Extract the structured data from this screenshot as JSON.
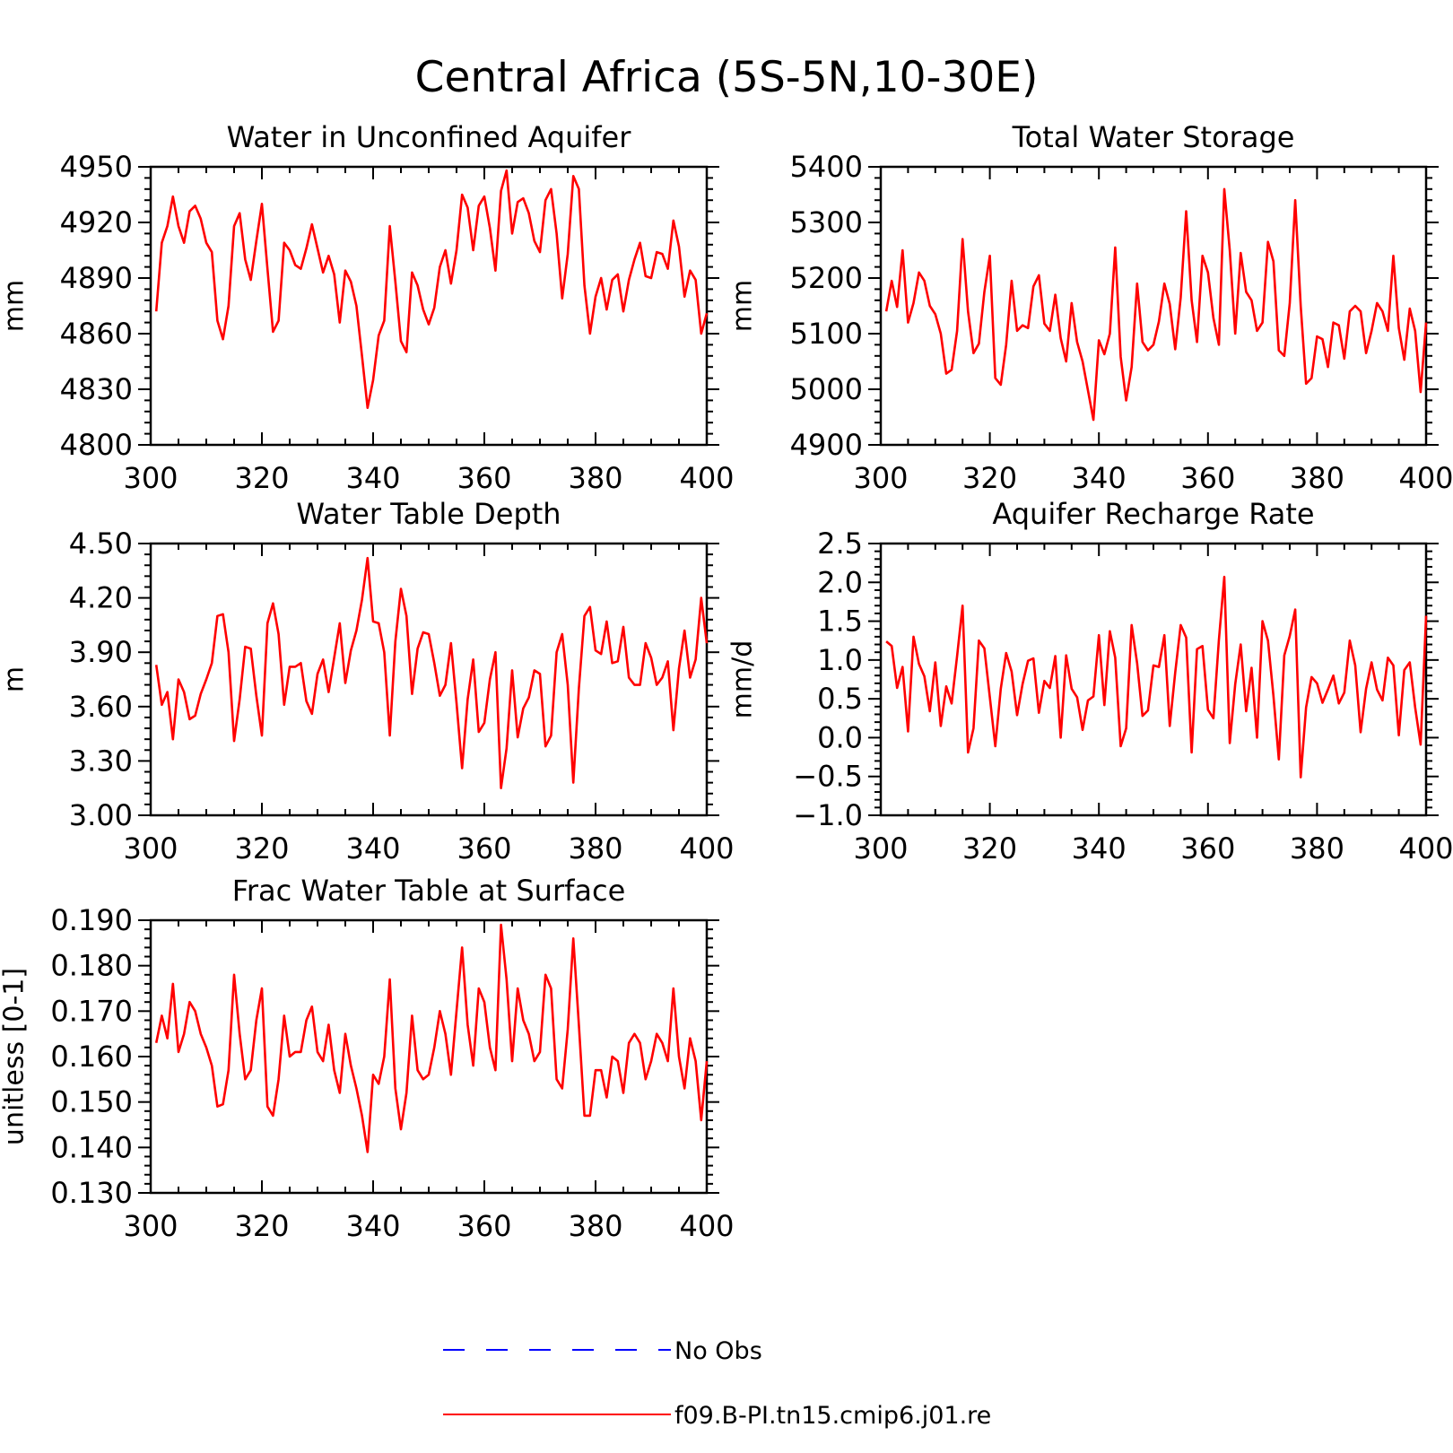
{
  "figure": {
    "title": "Central Africa (5S-5N,10-30E)"
  },
  "legend": {
    "entries": [
      {
        "label": "No Obs",
        "color": "#0000ff",
        "style": "dashed"
      },
      {
        "label": "f09.B-PI.tn15.cmip6.j01.re",
        "color": "#ff0000",
        "style": "solid"
      }
    ]
  },
  "chart_data": [
    {
      "type": "line",
      "title": "Water in Unconfined Aquifer",
      "ylabel": "mm",
      "xlim": [
        300,
        400
      ],
      "ylim": [
        4800,
        4950
      ],
      "xticks": [
        "300",
        "320",
        "340",
        "360",
        "380",
        "400"
      ],
      "yticks": [
        "4800",
        "4830",
        "4860",
        "4890",
        "4920",
        "4950"
      ],
      "series": [
        {
          "name": "f09.B-PI.tn15.cmip6.j01.re",
          "color": "#ff0000",
          "x_start": 301,
          "values": [
            4872,
            4909,
            4918,
            4934,
            4918,
            4909,
            4926,
            4929,
            4922,
            4909,
            4904,
            4867,
            4857,
            4875,
            4918,
            4925,
            4900,
            4889,
            4910,
            4930,
            4895,
            4861,
            4867,
            4909,
            4905,
            4897,
            4895,
            4906,
            4919,
            4906,
            4893,
            4902,
            4892,
            4866,
            4894,
            4888,
            4875,
            4848,
            4820,
            4835,
            4859,
            4867,
            4918,
            4888,
            4856,
            4850,
            4893,
            4886,
            4873,
            4865,
            4874,
            4896,
            4905,
            4887,
            4905,
            4935,
            4928,
            4905,
            4929,
            4934,
            4917,
            4894,
            4937,
            4948,
            4914,
            4931,
            4933,
            4925,
            4910,
            4904,
            4932,
            4938,
            4914,
            4879,
            4903,
            4945,
            4938,
            4886,
            4860,
            4880,
            4890,
            4873,
            4889,
            4892,
            4872,
            4889,
            4900,
            4909,
            4891,
            4890,
            4904,
            4903,
            4895,
            4921,
            4907,
            4880,
            4894,
            4889,
            4860,
            4871
          ]
        }
      ]
    },
    {
      "type": "line",
      "title": "Total Water Storage",
      "ylabel": "mm",
      "xlim": [
        300,
        400
      ],
      "ylim": [
        4900,
        5400
      ],
      "xticks": [
        "300",
        "320",
        "340",
        "360",
        "380",
        "400"
      ],
      "yticks": [
        "4900",
        "5000",
        "5100",
        "5200",
        "5300",
        "5400"
      ],
      "series": [
        {
          "name": "f09.B-PI.tn15.cmip6.j01.re",
          "color": "#ff0000",
          "x_start": 301,
          "values": [
            5140,
            5195,
            5148,
            5250,
            5120,
            5155,
            5210,
            5195,
            5150,
            5135,
            5100,
            5028,
            5035,
            5105,
            5270,
            5140,
            5065,
            5082,
            5175,
            5240,
            5020,
            5008,
            5080,
            5195,
            5105,
            5115,
            5110,
            5185,
            5205,
            5118,
            5105,
            5170,
            5092,
            5050,
            5155,
            5085,
            5050,
            4998,
            4945,
            5088,
            5063,
            5100,
            5255,
            5058,
            4980,
            5040,
            5190,
            5085,
            5070,
            5080,
            5122,
            5190,
            5153,
            5072,
            5165,
            5320,
            5160,
            5085,
            5240,
            5210,
            5128,
            5080,
            5360,
            5250,
            5100,
            5245,
            5175,
            5160,
            5105,
            5120,
            5265,
            5230,
            5070,
            5060,
            5155,
            5340,
            5150,
            5010,
            5020,
            5095,
            5090,
            5040,
            5120,
            5115,
            5055,
            5140,
            5150,
            5140,
            5065,
            5105,
            5155,
            5140,
            5105,
            5240,
            5110,
            5053,
            5145,
            5105,
            4995,
            5120
          ]
        }
      ]
    },
    {
      "type": "line",
      "title": "Water Table Depth",
      "ylabel": "m",
      "xlim": [
        300,
        400
      ],
      "ylim": [
        3.0,
        4.5
      ],
      "xticks": [
        "300",
        "320",
        "340",
        "360",
        "380",
        "400"
      ],
      "yticks": [
        "3.00",
        "3.30",
        "3.60",
        "3.90",
        "4.20",
        "4.50"
      ],
      "series": [
        {
          "name": "f09.B-PI.tn15.cmip6.j01.re",
          "color": "#ff0000",
          "x_start": 301,
          "values": [
            3.83,
            3.61,
            3.68,
            3.42,
            3.75,
            3.68,
            3.53,
            3.55,
            3.67,
            3.75,
            3.84,
            4.1,
            4.11,
            3.9,
            3.41,
            3.64,
            3.93,
            3.92,
            3.66,
            3.44,
            4.06,
            4.17,
            4.0,
            3.61,
            3.82,
            3.82,
            3.84,
            3.63,
            3.56,
            3.78,
            3.86,
            3.68,
            3.87,
            4.06,
            3.73,
            3.91,
            4.02,
            4.19,
            4.42,
            4.07,
            4.06,
            3.9,
            3.44,
            3.96,
            4.25,
            4.1,
            3.67,
            3.92,
            4.01,
            4.0,
            3.84,
            3.66,
            3.72,
            3.95,
            3.62,
            3.26,
            3.64,
            3.86,
            3.46,
            3.51,
            3.75,
            3.9,
            3.15,
            3.37,
            3.8,
            3.43,
            3.59,
            3.65,
            3.8,
            3.78,
            3.38,
            3.44,
            3.9,
            4.0,
            3.72,
            3.18,
            3.7,
            4.1,
            4.15,
            3.91,
            3.89,
            4.07,
            3.84,
            3.85,
            4.04,
            3.76,
            3.72,
            3.72,
            3.95,
            3.87,
            3.72,
            3.76,
            3.85,
            3.47,
            3.81,
            4.02,
            3.76,
            3.86,
            4.2,
            3.95
          ]
        }
      ]
    },
    {
      "type": "line",
      "title": "Aquifer Recharge Rate",
      "ylabel": "mm/d",
      "xlim": [
        300,
        400
      ],
      "ylim": [
        -1.0,
        2.5
      ],
      "xticks": [
        "300",
        "320",
        "340",
        "360",
        "380",
        "400"
      ],
      "yticks": [
        "-1.0",
        "-0.5",
        "0.0",
        "0.5",
        "1.0",
        "1.5",
        "2.0",
        "2.5"
      ],
      "series": [
        {
          "name": "f09.B-PI.tn15.cmip6.j01.re",
          "color": "#ff0000",
          "x_start": 301,
          "values": [
            1.24,
            1.18,
            0.64,
            0.91,
            0.08,
            1.3,
            0.95,
            0.79,
            0.34,
            0.97,
            0.15,
            0.66,
            0.44,
            1.05,
            1.7,
            -0.19,
            0.12,
            1.25,
            1.15,
            0.52,
            -0.11,
            0.63,
            1.09,
            0.85,
            0.29,
            0.69,
            0.99,
            1.02,
            0.32,
            0.73,
            0.64,
            1.05,
            0.0,
            1.06,
            0.63,
            0.52,
            0.1,
            0.48,
            0.53,
            1.32,
            0.42,
            1.37,
            1.03,
            -0.11,
            0.12,
            1.45,
            0.96,
            0.28,
            0.35,
            0.93,
            0.91,
            1.32,
            0.15,
            0.84,
            1.45,
            1.29,
            -0.19,
            1.14,
            1.18,
            0.36,
            0.25,
            1.26,
            2.07,
            -0.07,
            0.69,
            1.2,
            0.34,
            0.9,
            0.0,
            1.5,
            1.25,
            0.54,
            -0.28,
            1.06,
            1.31,
            1.65,
            -0.51,
            0.39,
            0.78,
            0.7,
            0.45,
            0.62,
            0.8,
            0.44,
            0.58,
            1.25,
            0.93,
            0.07,
            0.63,
            0.97,
            0.62,
            0.48,
            1.03,
            0.93,
            0.03,
            0.87,
            0.97,
            0.39,
            -0.09,
            1.57
          ]
        }
      ]
    },
    {
      "type": "line",
      "title": "Frac Water Table at Surface",
      "ylabel": "unitless [0-1]",
      "xlim": [
        300,
        400
      ],
      "ylim": [
        0.13,
        0.19
      ],
      "xticks": [
        "300",
        "320",
        "340",
        "360",
        "380",
        "400"
      ],
      "yticks": [
        "0.130",
        "0.140",
        "0.150",
        "0.160",
        "0.170",
        "0.180",
        "0.190"
      ],
      "series": [
        {
          "name": "f09.B-PI.tn15.cmip6.j01.re",
          "color": "#ff0000",
          "x_start": 301,
          "values": [
            0.163,
            0.169,
            0.164,
            0.176,
            0.161,
            0.165,
            0.172,
            0.17,
            0.165,
            0.162,
            0.158,
            0.149,
            0.1495,
            0.157,
            0.178,
            0.165,
            0.155,
            0.157,
            0.168,
            0.175,
            0.149,
            0.147,
            0.155,
            0.169,
            0.16,
            0.161,
            0.161,
            0.168,
            0.171,
            0.161,
            0.159,
            0.167,
            0.157,
            0.152,
            0.165,
            0.158,
            0.153,
            0.147,
            0.139,
            0.156,
            0.154,
            0.16,
            0.177,
            0.153,
            0.144,
            0.152,
            0.169,
            0.157,
            0.155,
            0.156,
            0.162,
            0.17,
            0.165,
            0.156,
            0.17,
            0.184,
            0.167,
            0.158,
            0.175,
            0.172,
            0.162,
            0.157,
            0.189,
            0.177,
            0.159,
            0.175,
            0.168,
            0.165,
            0.159,
            0.161,
            0.178,
            0.175,
            0.155,
            0.153,
            0.166,
            0.186,
            0.167,
            0.147,
            0.147,
            0.157,
            0.157,
            0.151,
            0.16,
            0.159,
            0.152,
            0.163,
            0.165,
            0.163,
            0.155,
            0.159,
            0.165,
            0.163,
            0.159,
            0.175,
            0.16,
            0.153,
            0.164,
            0.159,
            0.146,
            0.159
          ]
        }
      ]
    }
  ]
}
